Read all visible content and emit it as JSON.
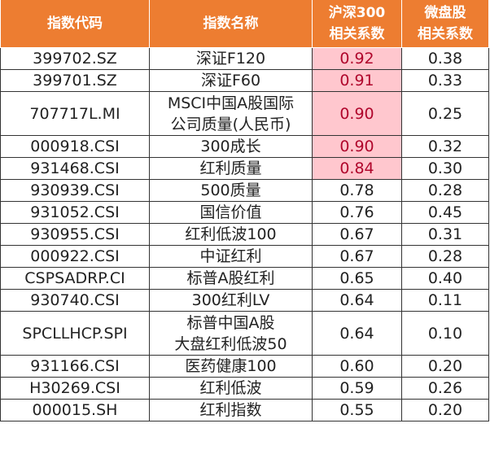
{
  "table": {
    "headers": {
      "code": "指数代码",
      "name": "指数名称",
      "hs300_line1": "沪深300",
      "hs300_line2": "相关系数",
      "micro_line1": "微盘股",
      "micro_line2": "相关系数"
    },
    "rows": [
      {
        "code": "399702.SZ",
        "name": "深证F120",
        "name2": "",
        "hs300": "0.92",
        "micro": "0.38",
        "highlight": true
      },
      {
        "code": "399701.SZ",
        "name": "深证F60",
        "name2": "",
        "hs300": "0.91",
        "micro": "0.33",
        "highlight": true
      },
      {
        "code": "707717L.MI",
        "name": "MSCI中国A股国际",
        "name2": "公司质量(人民币)",
        "hs300": "0.90",
        "micro": "0.25",
        "highlight": true
      },
      {
        "code": "000918.CSI",
        "name": "300成长",
        "name2": "",
        "hs300": "0.90",
        "micro": "0.32",
        "highlight": true
      },
      {
        "code": "931468.CSI",
        "name": "红利质量",
        "name2": "",
        "hs300": "0.84",
        "micro": "0.30",
        "highlight": true
      },
      {
        "code": "930939.CSI",
        "name": "500质量",
        "name2": "",
        "hs300": "0.78",
        "micro": "0.28",
        "highlight": false
      },
      {
        "code": "931052.CSI",
        "name": "国信价值",
        "name2": "",
        "hs300": "0.76",
        "micro": "0.45",
        "highlight": false
      },
      {
        "code": "930955.CSI",
        "name": "红利低波100",
        "name2": "",
        "hs300": "0.67",
        "micro": "0.31",
        "highlight": false
      },
      {
        "code": "000922.CSI",
        "name": "中证红利",
        "name2": "",
        "hs300": "0.67",
        "micro": "0.28",
        "highlight": false
      },
      {
        "code": "CSPSADRP.CI",
        "name": "标普A股红利",
        "name2": "",
        "hs300": "0.65",
        "micro": "0.40",
        "highlight": false
      },
      {
        "code": "930740.CSI",
        "name": "300红利LV",
        "name2": "",
        "hs300": "0.64",
        "micro": "0.11",
        "highlight": false
      },
      {
        "code": "SPCLLHCP.SPI",
        "name": "标普中国A股",
        "name2": "大盘红利低波50",
        "hs300": "0.64",
        "micro": "0.10",
        "highlight": false
      },
      {
        "code": "931166.CSI",
        "name": "医药健康100",
        "name2": "",
        "hs300": "0.60",
        "micro": "0.20",
        "highlight": false
      },
      {
        "code": "H30269.CSI",
        "name": "红利低波",
        "name2": "",
        "hs300": "0.59",
        "micro": "0.26",
        "highlight": false
      },
      {
        "code": "000015.SH",
        "name": "红利指数",
        "name2": "",
        "hs300": "0.55",
        "micro": "0.20",
        "highlight": false
      }
    ]
  },
  "colors": {
    "header_bg": "#ed7d31",
    "header_text": "#ffffff",
    "highlight_bg": "#ffc7ce",
    "highlight_text": "#b0062c",
    "body_text": "#222222",
    "border": "#333333"
  }
}
